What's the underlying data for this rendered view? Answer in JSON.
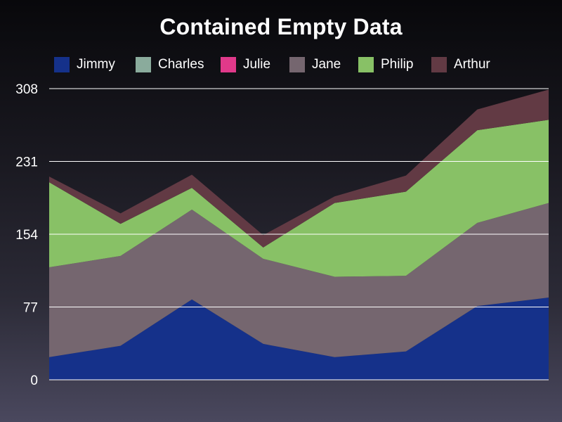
{
  "chart_data": {
    "type": "area",
    "stacked": true,
    "title": "Contained Empty Data",
    "xlabel": "",
    "ylabel": "",
    "ylim": [
      0,
      308
    ],
    "y_ticks": [
      0,
      77,
      154,
      231,
      308
    ],
    "grid": "horizontal",
    "legend_position": "top",
    "x": [
      1,
      2,
      3,
      4,
      5,
      6,
      7,
      8
    ],
    "series": [
      {
        "name": "Jimmy",
        "color": "#15318a",
        "values": [
          24,
          36,
          85,
          38,
          24,
          30,
          78,
          87
        ]
      },
      {
        "name": "Charles",
        "color": "#8aab9c",
        "values": [
          0,
          0,
          0,
          0,
          0,
          0,
          0,
          0
        ]
      },
      {
        "name": "Julie",
        "color": "#e0398a",
        "values": [
          0,
          0,
          0,
          0,
          0,
          0,
          0,
          0
        ]
      },
      {
        "name": "Jane",
        "color": "#75666f",
        "values": [
          95,
          95,
          95,
          90,
          85,
          80,
          88,
          100
        ]
      },
      {
        "name": "Philip",
        "color": "#88c166",
        "values": [
          90,
          34,
          23,
          12,
          78,
          89,
          98,
          88
        ]
      },
      {
        "name": "Arthur",
        "color": "#623a44",
        "values": [
          6,
          11,
          14,
          13,
          7,
          17,
          22,
          32
        ]
      }
    ]
  }
}
